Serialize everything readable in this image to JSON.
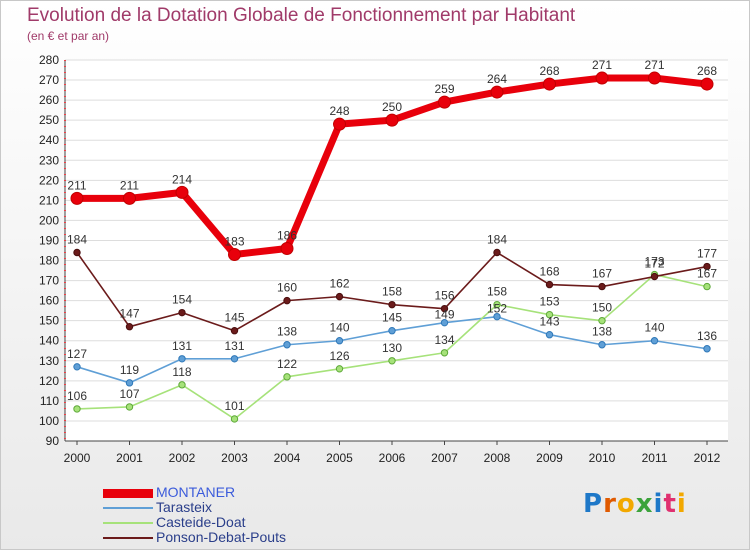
{
  "title": "Evolution de la Dotation Globale de Fonctionnement par Habitant",
  "subtitle": "(en € et par an)",
  "logo": "Proxiti",
  "chart_data": {
    "type": "line",
    "title": "Evolution de la Dotation Globale de Fonctionnement par Habitant",
    "subtitle": "(en € et par an)",
    "xlabel": "",
    "ylabel": "",
    "x": [
      "2000",
      "2001",
      "2002",
      "2003",
      "2004",
      "2005",
      "2006",
      "2007",
      "2008",
      "2009",
      "2010",
      "2011",
      "2012"
    ],
    "ylim": [
      90,
      280
    ],
    "yticks": [
      90,
      100,
      110,
      120,
      130,
      140,
      150,
      160,
      170,
      180,
      190,
      200,
      210,
      220,
      230,
      240,
      250,
      260,
      270,
      280
    ],
    "legend_position": "bottom-left",
    "series": [
      {
        "name": "MONTANER",
        "color": "#e8000b",
        "values": [
          211,
          211,
          214,
          183,
          186,
          248,
          250,
          259,
          264,
          268,
          271,
          271,
          268
        ],
        "labels": [
          "211",
          "211",
          "214",
          "183",
          "186",
          "248",
          "250",
          "259",
          "264",
          "268",
          "271",
          "271",
          "268"
        ]
      },
      {
        "name": "Tarasteix",
        "color": "#5f9fd6",
        "values": [
          127,
          119,
          131,
          131,
          138,
          140,
          145,
          149,
          152,
          143,
          138,
          140,
          136
        ],
        "labels": [
          "127",
          "119",
          "131",
          "131",
          "138",
          "140",
          "145",
          "149",
          "152",
          "143",
          "138",
          "140",
          "136"
        ]
      },
      {
        "name": "Casteide-Doat",
        "color": "#a6e27a",
        "values": [
          106,
          107,
          118,
          101,
          122,
          126,
          130,
          134,
          158,
          153,
          150,
          173,
          167
        ],
        "labels": [
          "106",
          "107",
          "118",
          "101",
          "122",
          "126",
          "130",
          "134",
          "158",
          "153",
          "150",
          "173",
          "167"
        ]
      },
      {
        "name": "Ponson-Debat-Pouts",
        "color": "#6b1b1b",
        "values": [
          184,
          147,
          154,
          145,
          160,
          162,
          158,
          156,
          184,
          168,
          167,
          172,
          177
        ],
        "labels": [
          "184",
          "147",
          "154",
          "145",
          "160",
          "162",
          "158",
          "156",
          "184",
          "168",
          "167",
          "172",
          "177"
        ]
      }
    ]
  }
}
